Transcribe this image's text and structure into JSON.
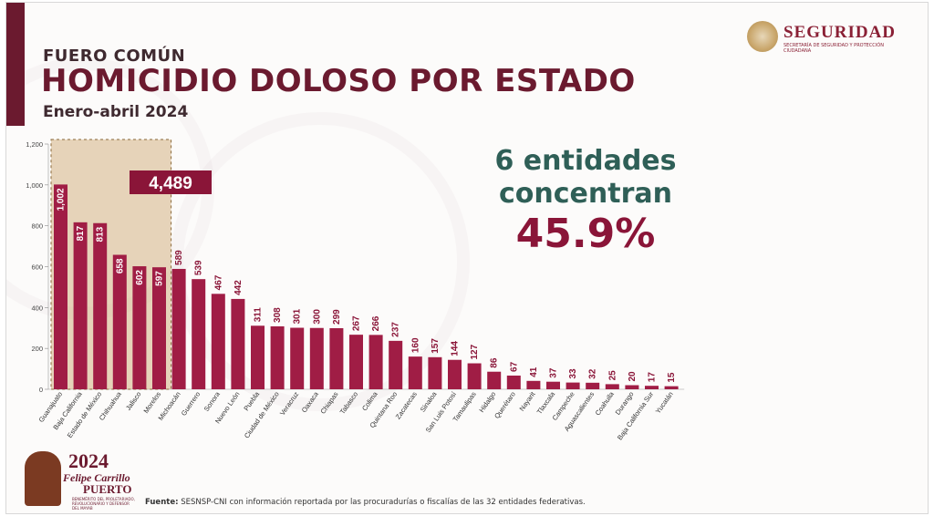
{
  "header": {
    "section": "FUERO COMÚN",
    "title": "HOMICIDIO DOLOSO POR ESTADO",
    "period": "Enero-abril 2024"
  },
  "logo": {
    "name": "SEGURIDAD",
    "subtitle": "SECRETARÍA DE SEGURIDAD Y PROTECCIÓN CIUDADANA"
  },
  "highlight": {
    "line1": "6 entidades",
    "line2": "concentran",
    "percent": "45.9%"
  },
  "footer_logo": {
    "year": "2024",
    "name": "Felipe Carrillo",
    "surname": "PUERTO",
    "caption": "BENEMÉRITO DEL PROLETARIADO, REVOLUCIONARIO Y DEFENSOR DEL MAYAB"
  },
  "footer": {
    "source_label": "Fuente:",
    "source_text": "SESNSP-CNI con información reportada por las procuradurías o fiscalías de las 32 entidades federativas."
  },
  "colors": {
    "bar": "#a01d45",
    "highlight_box": "#d4b283",
    "accent": "#6b1a2f",
    "highlight_text": "#2f5f57"
  },
  "chart_data": {
    "type": "bar",
    "title": "HOMICIDIO DOLOSO POR ESTADO",
    "xlabel": "",
    "ylabel": "",
    "ylim": [
      0,
      1200
    ],
    "yticks": [
      0,
      200,
      400,
      600,
      800,
      1000,
      1200
    ],
    "ytick_labels": [
      "0",
      "200",
      "400",
      "600",
      "800",
      "1,000",
      "1,200"
    ],
    "grid": false,
    "categories": [
      "Guanajuato",
      "Baja California",
      "Estado de México",
      "Chihuahua",
      "Jalisco",
      "Morelos",
      "Michoacán",
      "Guerrero",
      "Sonora",
      "Nuevo León",
      "Puebla",
      "Ciudad de México",
      "Veracruz",
      "Oaxaca",
      "Chiapas",
      "Tabasco",
      "Colima",
      "Quintana Roo",
      "Zacatecas",
      "Sinaloa",
      "San Luis Potosí",
      "Tamaulipas",
      "Hidalgo",
      "Querétaro",
      "Nayarit",
      "Tlaxcala",
      "Campeche",
      "Aguascalientes",
      "Coahuila",
      "Durango",
      "Baja California Sur",
      "Yucatán"
    ],
    "values": [
      1002,
      817,
      813,
      658,
      602,
      597,
      589,
      539,
      467,
      442,
      311,
      308,
      301,
      300,
      299,
      267,
      266,
      237,
      160,
      157,
      144,
      127,
      86,
      67,
      41,
      37,
      33,
      32,
      25,
      20,
      17,
      15
    ],
    "value_labels": [
      "1,002",
      "817",
      "813",
      "658",
      "602",
      "597",
      "589",
      "539",
      "467",
      "442",
      "311",
      "308",
      "301",
      "300",
      "299",
      "267",
      "266",
      "237",
      "160",
      "157",
      "144",
      "127",
      "86",
      "67",
      "41",
      "37",
      "33",
      "32",
      "25",
      "20",
      "17",
      "15"
    ],
    "annotation": {
      "total": "4,489",
      "highlighted_count": 6
    }
  }
}
